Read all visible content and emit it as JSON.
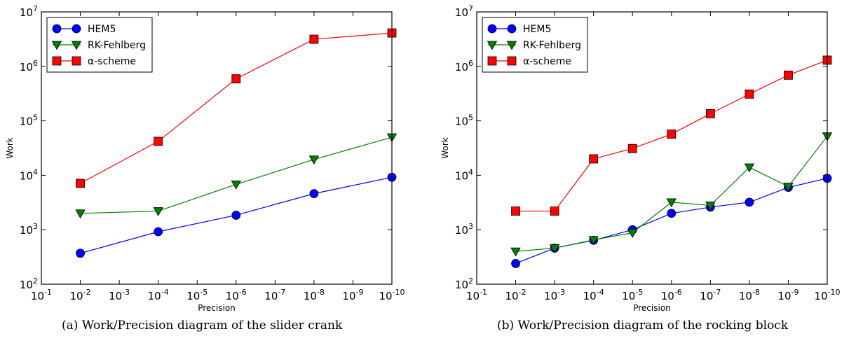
{
  "chart_data": [
    {
      "type": "line",
      "caption": "(a) Work/Precision diagram of the slider crank",
      "xlabel": "Precision",
      "ylabel": "Work",
      "xscale": "log",
      "yscale": "log",
      "x_reversed": true,
      "xlim": [
        0.1,
        1e-10
      ],
      "ylim": [
        100,
        10000000
      ],
      "x_ticks": [
        "10^-1",
        "10^-2",
        "10^-3",
        "10^-4",
        "10^-5",
        "10^-6",
        "10^-7",
        "10^-8",
        "10^-9",
        "10^-10"
      ],
      "y_ticks": [
        "10^2",
        "10^3",
        "10^4",
        "10^5",
        "10^6",
        "10^7"
      ],
      "grid": false,
      "legend_position": "top-left",
      "x": [
        0.01,
        0.0001,
        1e-06,
        1e-08,
        1e-10
      ],
      "series": [
        {
          "name": "HEM5",
          "color": "#0000ff",
          "marker": "circle",
          "values": [
            370,
            920,
            1850,
            4600,
            9200
          ]
        },
        {
          "name": "RK-Fehlberg",
          "color": "#008000",
          "marker": "triangle-down",
          "values": [
            2000,
            2200,
            6800,
            19500,
            50000
          ]
        },
        {
          "name": "α-scheme",
          "color": "#ff0000",
          "marker": "square",
          "values": [
            7100,
            42000,
            590000,
            3150000,
            4100000
          ]
        }
      ]
    },
    {
      "type": "line",
      "caption": "(b) Work/Precision diagram of the rocking block",
      "xlabel": "Precision",
      "ylabel": "Work",
      "xscale": "log",
      "yscale": "log",
      "x_reversed": true,
      "xlim": [
        0.1,
        1e-10
      ],
      "ylim": [
        100,
        10000000
      ],
      "x_ticks": [
        "10^-1",
        "10^-2",
        "10^-3",
        "10^-4",
        "10^-5",
        "10^-6",
        "10^-7",
        "10^-8",
        "10^-9",
        "10^-10"
      ],
      "y_ticks": [
        "10^2",
        "10^3",
        "10^4",
        "10^5",
        "10^6",
        "10^7"
      ],
      "grid": false,
      "legend_position": "top-left",
      "x": [
        0.01,
        0.001,
        0.0001,
        1e-05,
        1e-06,
        1e-07,
        1e-08,
        1e-09,
        1e-10
      ],
      "series": [
        {
          "name": "HEM5",
          "color": "#0000ff",
          "marker": "circle",
          "values": [
            240,
            460,
            640,
            1000,
            2000,
            2600,
            3200,
            6000,
            8800
          ]
        },
        {
          "name": "RK-Fehlberg",
          "color": "#008000",
          "marker": "triangle-down",
          "values": [
            400,
            460,
            650,
            880,
            3200,
            2800,
            14000,
            6200,
            52000
          ]
        },
        {
          "name": "α-scheme",
          "color": "#ff0000",
          "marker": "square",
          "values": [
            2200,
            2200,
            20000,
            31000,
            57000,
            135000,
            310000,
            690000,
            1300000
          ]
        }
      ]
    }
  ]
}
